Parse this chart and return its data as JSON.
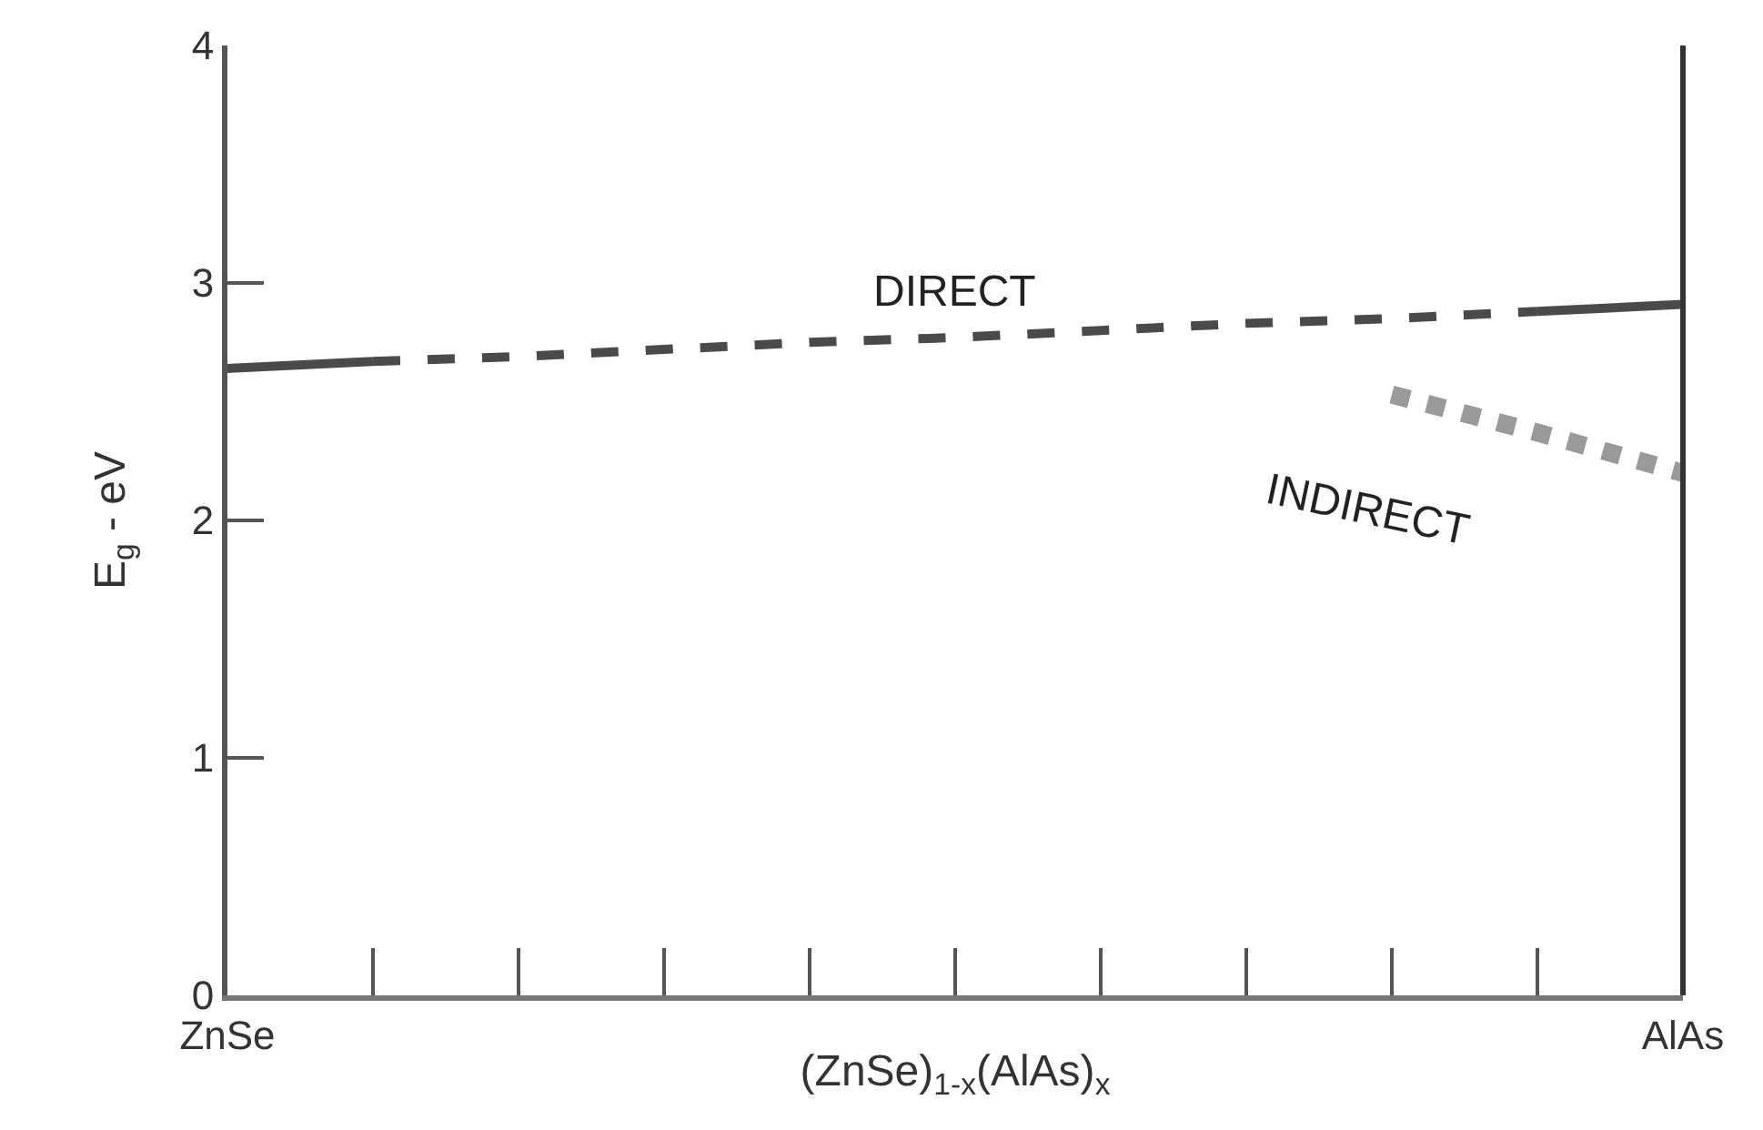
{
  "chart_data": {
    "type": "line",
    "xlabel": "(ZnSe)$_{1-x}$(AlAs)$_{x}$",
    "ylabel": "E$_{g}$ - eV",
    "categories": [
      "ZnSe",
      null,
      null,
      null,
      null,
      null,
      null,
      null,
      null,
      null,
      "AlAs"
    ],
    "ylim": [
      0,
      4
    ],
    "yticks": [
      0,
      1,
      2,
      3,
      4
    ],
    "grid": false,
    "marker": "none",
    "series": [
      {
        "color": "#4a4a4a",
        "line_style": "solid",
        "values": [
          2.64,
          2.67,
          null,
          null,
          null,
          null,
          null,
          null,
          null,
          null,
          null
        ]
      },
      {
        "color": "#4a4a4a",
        "line_style": "dashed",
        "values": [
          null,
          2.67,
          2.69,
          2.72,
          2.75,
          2.77,
          2.8,
          2.83,
          2.85,
          2.88,
          null
        ]
      },
      {
        "color": "#4a4a4a",
        "line_style": "solid",
        "values": [
          null,
          null,
          null,
          null,
          null,
          null,
          null,
          null,
          null,
          2.88,
          2.91
        ]
      },
      {
        "color": "#9a9a9a",
        "line_style": "dotted",
        "values": [
          null,
          null,
          null,
          null,
          null,
          null,
          null,
          null,
          2.53,
          2.37,
          2.2
        ]
      }
    ],
    "annotations": [
      "DIRECT",
      "INDIRECT"
    ]
  }
}
